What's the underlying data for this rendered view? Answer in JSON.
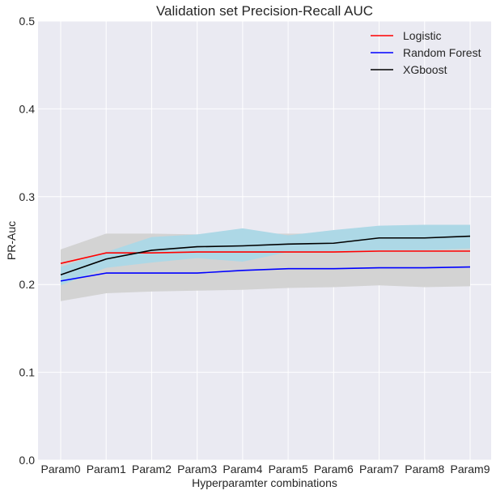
{
  "chart_data": {
    "type": "line",
    "title": "Validation set Precision-Recall AUC",
    "xlabel": "Hyperparamter combinations",
    "ylabel": "PR-Auc",
    "categories": [
      "Param0",
      "Param1",
      "Param2",
      "Param3",
      "Param4",
      "Param5",
      "Param6",
      "Param7",
      "Param8",
      "Param9"
    ],
    "ylim": [
      0,
      0.5
    ],
    "yticks": [
      0.0,
      0.1,
      0.2,
      0.3,
      0.4,
      0.5
    ],
    "ytick_labels": [
      "0.0",
      "0.1",
      "0.2",
      "0.3",
      "0.4",
      "0.5"
    ],
    "grid": true,
    "legend_position": "top-right",
    "bands": [
      {
        "color": "#d3d3d3",
        "lower": [
          0.181,
          0.19,
          0.192,
          0.193,
          0.194,
          0.196,
          0.197,
          0.199,
          0.197,
          0.198
        ],
        "upper": [
          0.24,
          0.258,
          0.258,
          0.257,
          0.258,
          0.258,
          0.258,
          0.258,
          0.258,
          0.257
        ]
      },
      {
        "color": "#add8e6",
        "lower": [
          0.199,
          0.219,
          0.225,
          0.23,
          0.226,
          0.237,
          0.238,
          0.239,
          0.239,
          0.241
        ],
        "upper": [
          0.22,
          0.237,
          0.254,
          0.257,
          0.264,
          0.256,
          0.262,
          0.267,
          0.268,
          0.268
        ]
      }
    ],
    "series": [
      {
        "name": "Logistic",
        "color": "#ff0000",
        "values": [
          0.224,
          0.236,
          0.236,
          0.237,
          0.237,
          0.237,
          0.237,
          0.238,
          0.238,
          0.238
        ]
      },
      {
        "name": "Random Forest",
        "color": "#0000ff",
        "values": [
          0.204,
          0.213,
          0.213,
          0.213,
          0.216,
          0.218,
          0.218,
          0.219,
          0.219,
          0.22
        ]
      },
      {
        "name": "XGboost",
        "color": "#000000",
        "values": [
          0.211,
          0.229,
          0.239,
          0.243,
          0.244,
          0.246,
          0.247,
          0.253,
          0.253,
          0.255
        ]
      }
    ],
    "colors": {
      "plot_background": "#eaeaf2",
      "grid": "#ffffff",
      "text": "#262626"
    }
  }
}
